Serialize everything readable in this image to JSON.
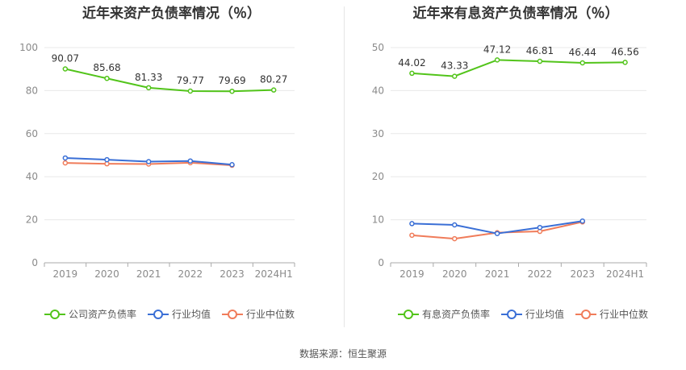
{
  "source_text": "数据来源：恒生聚源",
  "chart_data": [
    {
      "type": "line",
      "title": "近年来资产负债率情况（％）",
      "categories": [
        "2019",
        "2020",
        "2021",
        "2022",
        "2023",
        "2024H1"
      ],
      "ylim": [
        0,
        100
      ],
      "yticks": [
        0,
        20,
        40,
        60,
        80,
        100
      ],
      "grid": true,
      "legend_position": "bottom",
      "series": [
        {
          "name": "公司资产负债率",
          "color": "#52c41a",
          "labeled": true,
          "values": [
            90.07,
            85.68,
            81.33,
            79.77,
            79.69,
            80.27
          ],
          "labels": [
            "90.07",
            "85.68",
            "81.33",
            "79.77",
            "79.69",
            "80.27"
          ]
        },
        {
          "name": "行业均值",
          "color": "#3a6fd6",
          "labeled": false,
          "values": [
            48.7,
            47.9,
            47.0,
            47.3,
            45.6,
            null
          ]
        },
        {
          "name": "行业中位数",
          "color": "#f07c5a",
          "labeled": false,
          "values": [
            46.4,
            46.0,
            45.9,
            46.5,
            45.3,
            null
          ]
        }
      ]
    },
    {
      "type": "line",
      "title": "近年来有息资产负债率情况（％）",
      "categories": [
        "2019",
        "2020",
        "2021",
        "2022",
        "2023",
        "2024H1"
      ],
      "ylim": [
        0,
        50
      ],
      "yticks": [
        0,
        10,
        20,
        30,
        40,
        50
      ],
      "grid": true,
      "legend_position": "bottom",
      "series": [
        {
          "name": "有息资产负债率",
          "color": "#52c41a",
          "labeled": true,
          "values": [
            44.02,
            43.33,
            47.12,
            46.81,
            46.44,
            46.56
          ],
          "labels": [
            "44.02",
            "43.33",
            "47.12",
            "46.81",
            "46.44",
            "46.56"
          ]
        },
        {
          "name": "行业均值",
          "color": "#3a6fd6",
          "labeled": false,
          "values": [
            9.1,
            8.8,
            6.8,
            8.2,
            9.7,
            null
          ]
        },
        {
          "name": "行业中位数",
          "color": "#f07c5a",
          "labeled": false,
          "values": [
            6.4,
            5.6,
            7.0,
            7.3,
            9.5,
            null
          ]
        }
      ]
    }
  ]
}
